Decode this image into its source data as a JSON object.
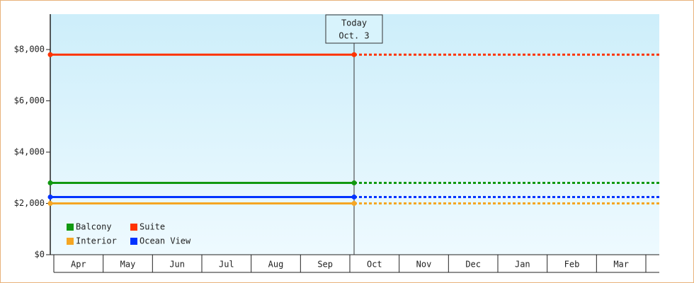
{
  "chart_data": {
    "type": "line",
    "categories": [
      "Apr",
      "May",
      "Jun",
      "Jul",
      "Aug",
      "Sep",
      "Oct",
      "Nov",
      "Dec",
      "Jan",
      "Feb",
      "Mar"
    ],
    "series": [
      {
        "name": "Suite",
        "color": "#ff3300",
        "values": [
          7800,
          7800,
          7800,
          7800,
          7800,
          7800,
          7800,
          7800,
          7800,
          7800,
          7800,
          7800
        ]
      },
      {
        "name": "Balcony",
        "color": "#119911",
        "values": [
          2800,
          2800,
          2800,
          2800,
          2800,
          2800,
          2800,
          2800,
          2800,
          2800,
          2800,
          2800
        ]
      },
      {
        "name": "Ocean View",
        "color": "#0033ff",
        "values": [
          2250,
          2250,
          2250,
          2250,
          2250,
          2250,
          2250,
          2250,
          2250,
          2250,
          2250,
          2250
        ]
      },
      {
        "name": "Interior",
        "color": "#f5a623",
        "values": [
          2000,
          2000,
          2000,
          2000,
          2000,
          2000,
          2000,
          2000,
          2000,
          2000,
          2000,
          2000
        ]
      }
    ],
    "legend_order": [
      1,
      0,
      3,
      2
    ],
    "annotation": {
      "line1": "Today",
      "line2": "Oct. 3",
      "category_index": 6
    },
    "ylim": [
      0,
      9380
    ],
    "yticks": [
      {
        "value": 0,
        "label": "$0"
      },
      {
        "value": 2000,
        "label": "$2,000"
      },
      {
        "value": 4000,
        "label": "$4,000"
      },
      {
        "value": 6000,
        "label": "$6,000"
      },
      {
        "value": 8000,
        "label": "$8,000"
      }
    ]
  }
}
